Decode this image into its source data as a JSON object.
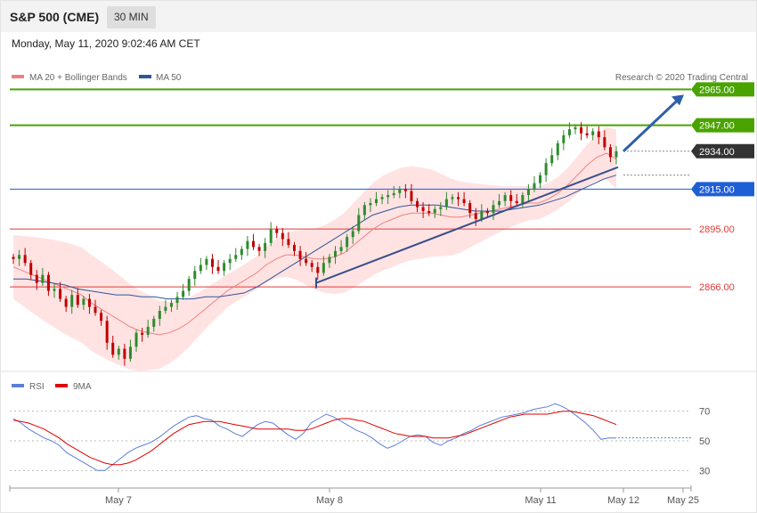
{
  "header": {
    "title": "S&P 500 (CME)",
    "timeframe": "30 MIN"
  },
  "datetime": "Monday, May 11, 2020 9:02:46 AM CET",
  "credit": "Research © 2020 Trading Central",
  "colors": {
    "ma20": "#f08080",
    "ma50": "#2f5597",
    "band_fill": "#ffdede",
    "candle_up": "#2e8b2e",
    "candle_down": "#c00000",
    "target_green": "#4aa300",
    "pivot_blue": "#1f5fd6",
    "support_red": "#e53935",
    "last_price": "#333333",
    "rsi": "#5b7fd6",
    "rsi_ma": "#e00000"
  },
  "chart_data": [
    {
      "type": "candlestick",
      "legend": [
        {
          "name": "MA 20 + Bollinger Bands",
          "color": "#f08080"
        },
        {
          "name": "MA 50",
          "color": "#2f5597"
        }
      ],
      "y_range": [
        2825,
        2983
      ],
      "levels": [
        {
          "value": 2965.0,
          "label": "2965.00",
          "kind": "target"
        },
        {
          "value": 2947.0,
          "label": "2947.00",
          "kind": "target"
        },
        {
          "value": 2934.0,
          "label": "2934.00",
          "kind": "last"
        },
        {
          "value": 2915.0,
          "label": "2915.00",
          "kind": "pivot"
        },
        {
          "value": 2895.0,
          "label": "2895.00",
          "kind": "support"
        },
        {
          "value": 2866.0,
          "label": "2866.00",
          "kind": "support"
        }
      ],
      "close_path": [
        2880,
        2882,
        2878,
        2872,
        2868,
        2872,
        2864,
        2865,
        2860,
        2856,
        2862,
        2857,
        2860,
        2856,
        2853,
        2849,
        2838,
        2832,
        2835,
        2830,
        2836,
        2843,
        2842,
        2846,
        2850,
        2854,
        2856,
        2858,
        2861,
        2864,
        2870,
        2874,
        2877,
        2880,
        2876,
        2874,
        2878,
        2880,
        2882,
        2885,
        2889,
        2886,
        2884,
        2888,
        2895,
        2893,
        2890,
        2887,
        2884,
        2880,
        2878,
        2876,
        2873,
        2878,
        2881,
        2884,
        2886,
        2891,
        2894,
        2902,
        2907,
        2908,
        2910,
        2911,
        2912,
        2913,
        2915,
        2914,
        2909,
        2906,
        2904,
        2903,
        2905,
        2906,
        2910,
        2911,
        2910,
        2908,
        2903,
        2900,
        2904,
        2903,
        2907,
        2909,
        2912,
        2909,
        2908,
        2912,
        2915,
        2918,
        2922,
        2928,
        2932,
        2938,
        2942,
        2945,
        2946,
        2943,
        2942,
        2944,
        2941,
        2936,
        2931,
        2934
      ],
      "ma20_path": [
        2876,
        2874,
        2872,
        2870,
        2868,
        2866,
        2864,
        2862,
        2858,
        2855,
        2852,
        2849,
        2846,
        2844,
        2843,
        2842,
        2843,
        2845,
        2848,
        2852,
        2856,
        2860,
        2864,
        2867,
        2870,
        2873,
        2877,
        2880,
        2882,
        2882,
        2881,
        2880,
        2880,
        2881,
        2883,
        2887,
        2891,
        2895,
        2898,
        2900,
        2902,
        2903,
        2903,
        2903,
        2902,
        2901,
        2901,
        2902,
        2903,
        2904,
        2905,
        2906,
        2907,
        2908,
        2908,
        2910,
        2913,
        2917,
        2922,
        2927,
        2931,
        2933,
        2930
      ],
      "ma50_path": [
        2870,
        2870,
        2869,
        2868,
        2867,
        2865,
        2864,
        2863,
        2862,
        2862,
        2861,
        2861,
        2860,
        2860,
        2860,
        2861,
        2861,
        2862,
        2863,
        2866,
        2870,
        2874,
        2878,
        2882,
        2886,
        2890,
        2894,
        2898,
        2902,
        2904,
        2906,
        2907,
        2907,
        2907,
        2906,
        2905,
        2904,
        2904,
        2904,
        2905,
        2906,
        2907,
        2909,
        2911,
        2914,
        2917,
        2920,
        2922
      ],
      "trendline": {
        "from": 2868,
        "to": 2926
      },
      "arrow": {
        "from": 2934,
        "to": 2965
      }
    },
    {
      "type": "line",
      "legend": [
        {
          "name": "RSI",
          "color": "#5b7fd6"
        },
        {
          "name": "9MA",
          "color": "#e00000"
        }
      ],
      "y_ticks": [
        "70",
        "50",
        "30"
      ],
      "y_range": [
        20,
        80
      ],
      "rsi_path": [
        65,
        62,
        58,
        55,
        52,
        50,
        47,
        42,
        39,
        36,
        33,
        30,
        30,
        34,
        38,
        42,
        45,
        47,
        49,
        52,
        56,
        60,
        63,
        66,
        67,
        65,
        64,
        60,
        58,
        55,
        53,
        57,
        61,
        63,
        62,
        58,
        54,
        51,
        55,
        62,
        65,
        68,
        66,
        63,
        60,
        57,
        55,
        52,
        48,
        45,
        47,
        50,
        53,
        54,
        53,
        49,
        47,
        50,
        52,
        55,
        57,
        60,
        62,
        64,
        66,
        67,
        68,
        69,
        71,
        72,
        73,
        75,
        73,
        70,
        66,
        62,
        57,
        51,
        52,
        52
      ],
      "rsi_ma_path": [
        64,
        63,
        62,
        60,
        58,
        55,
        52,
        48,
        45,
        42,
        39,
        37,
        35,
        34,
        34,
        35,
        37,
        40,
        43,
        47,
        51,
        55,
        58,
        61,
        62,
        63,
        63,
        63,
        62,
        61,
        60,
        59,
        58,
        58,
        58,
        58,
        58,
        57,
        57,
        58,
        60,
        62,
        64,
        65,
        65,
        64,
        63,
        61,
        59,
        57,
        55,
        54,
        53,
        53,
        53,
        52,
        52,
        52,
        53,
        54,
        56,
        58,
        60,
        62,
        64,
        66,
        67,
        68,
        68,
        68,
        68,
        69,
        70,
        70,
        69,
        68,
        67,
        65,
        63,
        61
      ]
    }
  ],
  "x_axis": {
    "ticks": [
      "May 7",
      "May 8",
      "May 11",
      "May 12",
      "May 25"
    ]
  }
}
